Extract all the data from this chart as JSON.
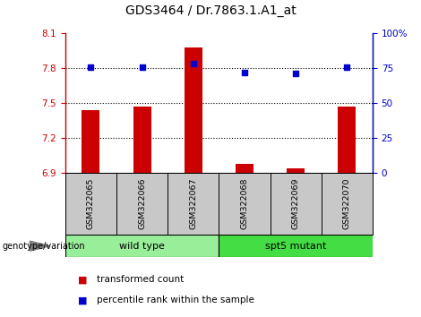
{
  "title": "GDS3464 / Dr.7863.1.A1_at",
  "samples": [
    "GSM322065",
    "GSM322066",
    "GSM322067",
    "GSM322068",
    "GSM322069",
    "GSM322070"
  ],
  "bar_values": [
    7.44,
    7.47,
    7.98,
    6.98,
    6.94,
    7.47
  ],
  "dot_values": [
    76,
    76,
    78,
    72,
    71,
    76
  ],
  "bar_color": "#cc0000",
  "dot_color": "#0000cc",
  "ylim_left": [
    6.9,
    8.1
  ],
  "ylim_right": [
    0,
    100
  ],
  "yticks_left": [
    6.9,
    7.2,
    7.5,
    7.8,
    8.1
  ],
  "yticks_right": [
    0,
    25,
    50,
    75,
    100
  ],
  "ytick_labels_right": [
    "0",
    "25",
    "50",
    "75",
    "100%"
  ],
  "hlines": [
    7.8,
    7.5,
    7.2
  ],
  "groups": [
    {
      "label": "wild type",
      "indices": [
        0,
        1,
        2
      ],
      "color": "#99ee99"
    },
    {
      "label": "spt5 mutant",
      "indices": [
        3,
        4,
        5
      ],
      "color": "#44dd44"
    }
  ],
  "genotype_label": "genotype/variation",
  "legend_bar_label": "transformed count",
  "legend_dot_label": "percentile rank within the sample",
  "bar_width": 0.35,
  "title_fontsize": 10,
  "tick_fontsize": 7.5,
  "label_fontsize": 7.5,
  "cell_bg": "#c8c8c8",
  "plot_bg": "#ffffff"
}
